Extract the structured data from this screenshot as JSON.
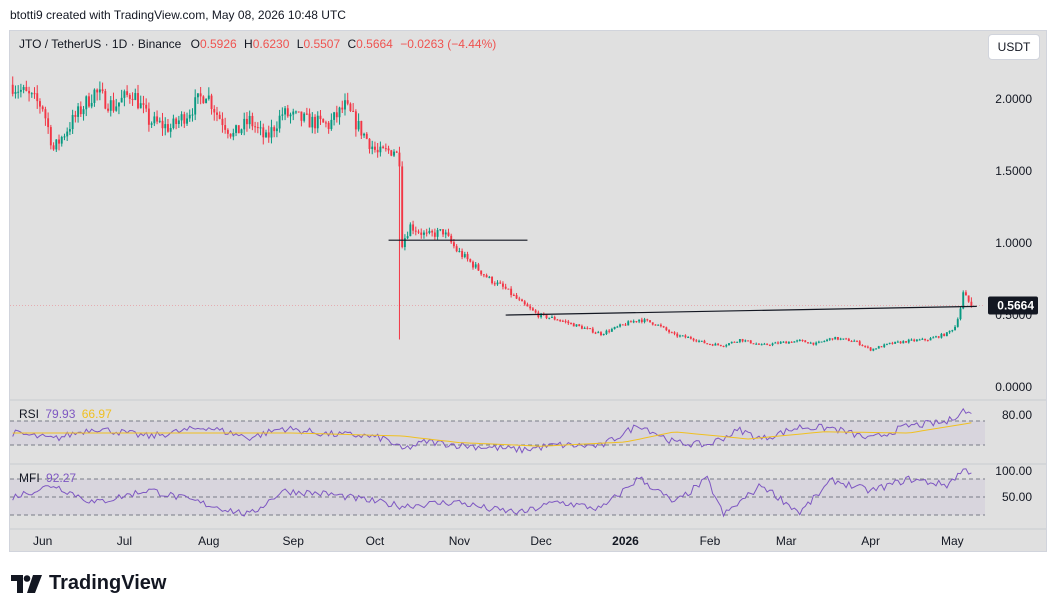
{
  "header": {
    "text": "btotti9 created with TradingView.com, May 08, 2026 10:48 UTC"
  },
  "legend": {
    "symbol": "JTO / TetherUS · 1D · Binance",
    "o_label": "O",
    "o": "0.5926",
    "h_label": "H",
    "h": "0.6230",
    "l_label": "L",
    "l": "0.5507",
    "c_label": "C",
    "c": "0.5664",
    "change": "−0.0263 (−4.44%)"
  },
  "quote_button": "USDT",
  "last_price": "0.5664",
  "rsi": {
    "label": "RSI",
    "value": "79.93",
    "ma_value": "66.97"
  },
  "mfi": {
    "label": "MFI",
    "value": "92.27"
  },
  "logo_text": "TradingView",
  "colors": {
    "up": "#26a69a",
    "up_candle": "#089981",
    "down": "#f23645",
    "rsi_line": "#7e57c2",
    "rsi_ma": "#fdd835"
  },
  "chart_data": [
    {
      "type": "candlestick",
      "title": "JTO / TetherUS · 1D · Binance",
      "y_ticks": [
        "2.0000",
        "1.5000",
        "1.0000",
        "0.5000",
        "0.0000"
      ],
      "ylim": [
        0,
        2.3
      ],
      "x_ticks": [
        "Jun",
        "Jul",
        "Aug",
        "Sep",
        "Oct",
        "Nov",
        "Dec",
        "2026",
        "Feb",
        "Mar",
        "Apr",
        "May"
      ],
      "x_range": [
        "2025-05-20",
        "2026-05-13"
      ],
      "close_series": [
        [
          "2025-05-21",
          2.1
        ],
        [
          "2025-06-01",
          1.95
        ],
        [
          "2025-06-05",
          1.65
        ],
        [
          "2025-06-12",
          1.85
        ],
        [
          "2025-06-20",
          2.05
        ],
        [
          "2025-06-27",
          1.95
        ],
        [
          "2025-07-04",
          2.05
        ],
        [
          "2025-07-10",
          1.85
        ],
        [
          "2025-07-18",
          1.8
        ],
        [
          "2025-07-24",
          1.9
        ],
        [
          "2025-07-31",
          2.05
        ],
        [
          "2025-08-04",
          1.9
        ],
        [
          "2025-08-10",
          1.75
        ],
        [
          "2025-08-16",
          1.85
        ],
        [
          "2025-08-22",
          1.72
        ],
        [
          "2025-08-28",
          1.9
        ],
        [
          "2025-09-06",
          1.85
        ],
        [
          "2025-09-14",
          1.82
        ],
        [
          "2025-09-20",
          1.95
        ],
        [
          "2025-09-26",
          1.78
        ],
        [
          "2025-10-02",
          1.62
        ],
        [
          "2025-10-08",
          1.65
        ],
        [
          "2025-10-10",
          1.58
        ],
        [
          "2025-10-11",
          1.0
        ],
        [
          "2025-10-14",
          1.12
        ],
        [
          "2025-10-20",
          1.05
        ],
        [
          "2025-10-26",
          1.08
        ],
        [
          "2025-10-31",
          0.95
        ],
        [
          "2025-11-06",
          0.85
        ],
        [
          "2025-11-12",
          0.75
        ],
        [
          "2025-11-18",
          0.68
        ],
        [
          "2025-11-24",
          0.58
        ],
        [
          "2025-11-30",
          0.5
        ],
        [
          "2025-12-07",
          0.47
        ],
        [
          "2025-12-15",
          0.42
        ],
        [
          "2025-12-23",
          0.37
        ],
        [
          "2025-12-31",
          0.43
        ],
        [
          "2026-01-06",
          0.47
        ],
        [
          "2026-01-12",
          0.44
        ],
        [
          "2026-01-19",
          0.36
        ],
        [
          "2026-01-25",
          0.34
        ],
        [
          "2026-01-31",
          0.3
        ],
        [
          "2026-02-06",
          0.29
        ],
        [
          "2026-02-12",
          0.33
        ],
        [
          "2026-02-20",
          0.29
        ],
        [
          "2026-02-28",
          0.31
        ],
        [
          "2026-03-06",
          0.32
        ],
        [
          "2026-03-12",
          0.3
        ],
        [
          "2026-03-18",
          0.34
        ],
        [
          "2026-03-26",
          0.32
        ],
        [
          "2026-04-01",
          0.26
        ],
        [
          "2026-04-08",
          0.3
        ],
        [
          "2026-04-15",
          0.32
        ],
        [
          "2026-04-22",
          0.33
        ],
        [
          "2026-04-29",
          0.37
        ],
        [
          "2026-05-02",
          0.42
        ],
        [
          "2026-05-04",
          0.55
        ],
        [
          "2026-05-05",
          0.65
        ],
        [
          "2026-05-07",
          0.5926
        ],
        [
          "2026-05-08",
          0.5664
        ]
      ],
      "last": {
        "date": "2026-05-08",
        "open": 0.5926,
        "high": 0.623,
        "low": 0.5507,
        "close": 0.5664
      },
      "flash_crash": {
        "date": "2025-10-10",
        "low": 0.33
      },
      "lines": [
        {
          "from": [
            "2025-10-06",
            1.02
          ],
          "to": [
            "2025-11-26",
            1.02
          ]
        },
        {
          "from": [
            "2025-11-18",
            0.5
          ],
          "to": [
            "2026-05-10",
            0.56
          ]
        }
      ]
    },
    {
      "type": "line",
      "name": "RSI",
      "ylim": [
        0,
        100
      ],
      "y_ticks": [
        "80.00"
      ],
      "bands": [
        70,
        30
      ],
      "series": [
        {
          "name": "RSI",
          "points": [
            [
              "2025-05-21",
              50
            ],
            [
              "2025-06-05",
              40
            ],
            [
              "2025-06-20",
              58
            ],
            [
              "2025-07-10",
              44
            ],
            [
              "2025-07-31",
              60
            ],
            [
              "2025-08-16",
              42
            ],
            [
              "2025-08-28",
              58
            ],
            [
              "2025-09-14",
              48
            ],
            [
              "2025-09-26",
              46
            ],
            [
              "2025-10-05",
              40
            ],
            [
              "2025-10-11",
              22
            ],
            [
              "2025-10-20",
              36
            ],
            [
              "2025-10-31",
              30
            ],
            [
              "2025-11-12",
              26
            ],
            [
              "2025-11-24",
              22
            ],
            [
              "2025-12-07",
              30
            ],
            [
              "2025-12-23",
              28
            ],
            [
              "2026-01-06",
              64
            ],
            [
              "2026-01-19",
              34
            ],
            [
              "2026-01-31",
              30
            ],
            [
              "2026-02-12",
              55
            ],
            [
              "2026-02-20",
              40
            ],
            [
              "2026-03-06",
              60
            ],
            [
              "2026-03-18",
              58
            ],
            [
              "2026-04-01",
              40
            ],
            [
              "2026-04-15",
              62
            ],
            [
              "2026-04-29",
              68
            ],
            [
              "2026-05-05",
              88
            ],
            [
              "2026-05-08",
              79.93
            ]
          ]
        },
        {
          "name": "RSI-based MA",
          "points": [
            [
              "2025-05-21",
              50
            ],
            [
              "2025-07-01",
              50
            ],
            [
              "2025-09-01",
              50
            ],
            [
              "2025-10-11",
              45
            ],
            [
              "2025-11-01",
              34
            ],
            [
              "2025-12-01",
              28
            ],
            [
              "2026-01-01",
              35
            ],
            [
              "2026-01-19",
              52
            ],
            [
              "2026-02-15",
              40
            ],
            [
              "2026-03-15",
              52
            ],
            [
              "2026-04-15",
              50
            ],
            [
              "2026-05-08",
              66.97
            ]
          ]
        }
      ]
    },
    {
      "type": "line",
      "name": "MFI",
      "ylim": [
        0,
        100
      ],
      "y_ticks": [
        "100.00",
        "50.00"
      ],
      "bands": [
        80,
        50,
        20
      ],
      "series": [
        {
          "name": "MFI",
          "points": [
            [
              "2025-05-21",
              50
            ],
            [
              "2025-06-05",
              70
            ],
            [
              "2025-06-20",
              40
            ],
            [
              "2025-07-10",
              62
            ],
            [
              "2025-07-31",
              38
            ],
            [
              "2025-08-16",
              20
            ],
            [
              "2025-08-28",
              60
            ],
            [
              "2025-09-14",
              55
            ],
            [
              "2025-09-26",
              46
            ],
            [
              "2025-10-11",
              35
            ],
            [
              "2025-10-31",
              42
            ],
            [
              "2025-11-12",
              30
            ],
            [
              "2025-11-24",
              24
            ],
            [
              "2025-12-07",
              42
            ],
            [
              "2025-12-23",
              30
            ],
            [
              "2026-01-06",
              82
            ],
            [
              "2026-01-19",
              40
            ],
            [
              "2026-01-31",
              80
            ],
            [
              "2026-02-06",
              20
            ],
            [
              "2026-02-20",
              70
            ],
            [
              "2026-03-06",
              24
            ],
            [
              "2026-03-18",
              78
            ],
            [
              "2026-04-01",
              60
            ],
            [
              "2026-04-15",
              80
            ],
            [
              "2026-04-29",
              70
            ],
            [
              "2026-05-05",
              95
            ],
            [
              "2026-05-08",
              92.27
            ]
          ]
        }
      ]
    }
  ]
}
